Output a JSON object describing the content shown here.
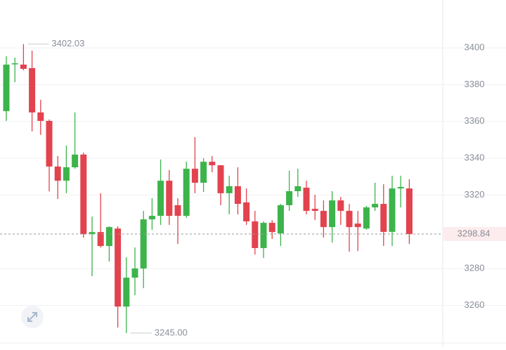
{
  "chart_data": {
    "type": "candlestick",
    "open": [
      3365.6,
      3391.2,
      3390.9,
      3389,
      3364.9,
      3360.3,
      3335.5,
      3327.8,
      3335.1,
      3342,
      3298.8,
      3299.9,
      3292.3,
      3301.8,
      3259.4,
      3275.1,
      3280.1,
      3306.8,
      3308.7,
      3327.8,
      3314.5,
      3308.7,
      3334.3,
      3326.7,
      3338.1,
      3336.2,
      3321,
      3324.8,
      3316,
      3305.7,
      3291.2,
      3304.9,
      3299.2,
      3314.5,
      3322.1,
      3324,
      3312.5,
      3311.4,
      3302.6,
      3317.1,
      3311.4,
      3304.5,
      3301.8,
      3313.3,
      3315.2,
      3300,
      3323.6,
      3323.6
    ],
    "high": [
      3395.4,
      3394.7,
      3402.03,
      3398.5,
      3371.8,
      3361.1,
      3341.2,
      3346.9,
      3364.9,
      3343.1,
      3308.3,
      3321,
      3303,
      3303,
      3286.2,
      3291.5,
      3311.4,
      3318.3,
      3339.3,
      3333.6,
      3318.3,
      3338.1,
      3351.5,
      3340,
      3341.2,
      3336.2,
      3330.5,
      3335.1,
      3323.6,
      3311.4,
      3305.7,
      3306.4,
      3315.2,
      3333.2,
      3334.3,
      3327.8,
      3320.2,
      3317.1,
      3322.1,
      3319,
      3315.2,
      3311.4,
      3314.1,
      3326.7,
      3325.9,
      3330.5,
      3330.5,
      3328.6
    ],
    "low": [
      3360.3,
      3381.3,
      3387.8,
      3354.6,
      3352.7,
      3322,
      3317.9,
      3321,
      3334.3,
      3296.9,
      3275.9,
      3291.5,
      3283.9,
      3248,
      3245,
      3265.6,
      3269.4,
      3301.1,
      3303.8,
      3303.8,
      3293.4,
      3307.6,
      3321,
      3321.7,
      3332.4,
      3314.5,
      3309.5,
      3309.5,
      3303.8,
      3287.7,
      3285.8,
      3296.1,
      3292.3,
      3311.4,
      3319,
      3309.5,
      3306.4,
      3296.9,
      3294.2,
      3303.8,
      3289.2,
      3289.6,
      3301.1,
      3311.4,
      3292.3,
      3292.3,
      3313.3,
      3293.4
    ],
    "close": [
      3390.9,
      3391.6,
      3388.6,
      3364.9,
      3360.3,
      3335.5,
      3327.8,
      3335.1,
      3342,
      3298.8,
      3299.9,
      3292.3,
      3302.6,
      3259.4,
      3275.1,
      3280.1,
      3306.8,
      3308.7,
      3327.8,
      3308.7,
      3308.7,
      3334.3,
      3326.7,
      3338.1,
      3336.2,
      3321,
      3324.8,
      3315.2,
      3305.7,
      3291.2,
      3304.9,
      3299.9,
      3314.5,
      3322.1,
      3324.8,
      3311.4,
      3311.4,
      3302.6,
      3317.1,
      3311.4,
      3302.6,
      3302.6,
      3313.3,
      3315.2,
      3300,
      3323.6,
      3324.4,
      3298.8
    ],
    "up_color": "#3cb44b",
    "down_color": "#e2434e",
    "ylim": [
      3240,
      3426
    ],
    "yticks": [
      3260,
      3280,
      3320,
      3340,
      3360,
      3380,
      3400
    ],
    "grid": true,
    "max_label": 3402.03,
    "min_label": {
      "value": 3245,
      "label": "3245.00"
    },
    "last_price": 3298.84
  }
}
